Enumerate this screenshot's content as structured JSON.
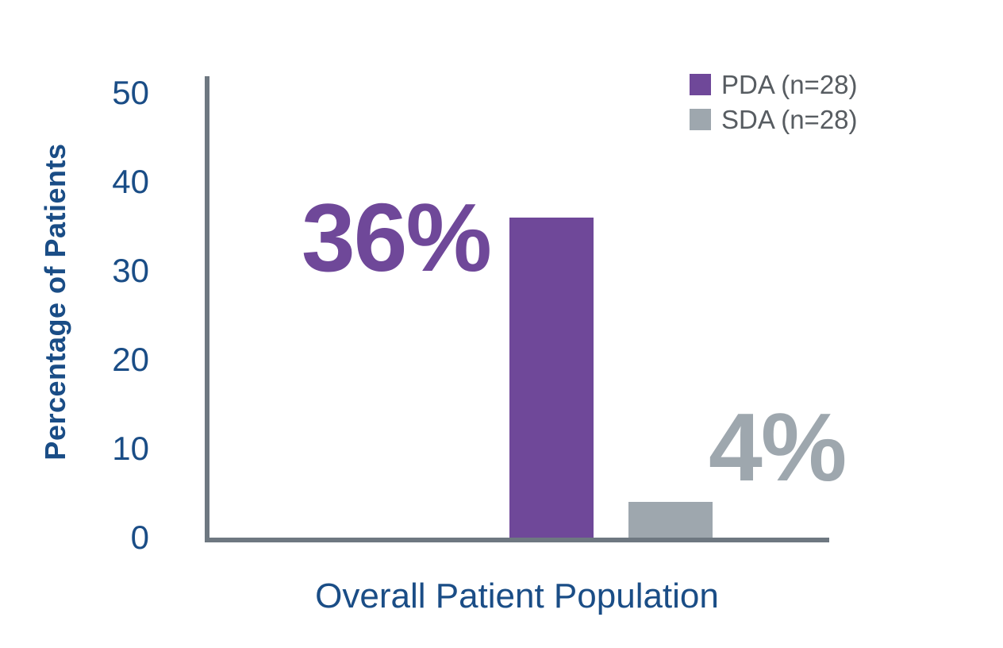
{
  "chart_data": {
    "type": "bar",
    "title": "",
    "categories": [
      "Overall Patient Population"
    ],
    "series": [
      {
        "name": "PDA (n=28)",
        "values": [
          36
        ],
        "data_label": "36%",
        "color": "#6f4899"
      },
      {
        "name": "SDA (n=28)",
        "values": [
          4
        ],
        "data_label": "4%",
        "color": "#9ea7ae"
      }
    ],
    "xlabel": "Overall Patient Population",
    "ylabel": "Percentage of Patients",
    "ylim": [
      0,
      50
    ],
    "yticks": [
      0,
      10,
      20,
      30,
      40,
      50
    ],
    "ytick_labels_top_to_bottom": [
      "50",
      "40",
      "30",
      "20",
      "10",
      "0"
    ],
    "grid": false,
    "legend_position": "top-right",
    "legend": [
      {
        "label": "PDA (n=28)",
        "color": "#6f4899"
      },
      {
        "label": "SDA (n=28)",
        "color": "#9ea7ae"
      }
    ],
    "colors": {
      "axis_text": "#1a4d86",
      "axis_line": "#6e7881",
      "legend_text": "#575c61",
      "pda_purple": "#6f4899",
      "sda_gray": "#9ea7ae",
      "background": "#ffffff"
    }
  }
}
